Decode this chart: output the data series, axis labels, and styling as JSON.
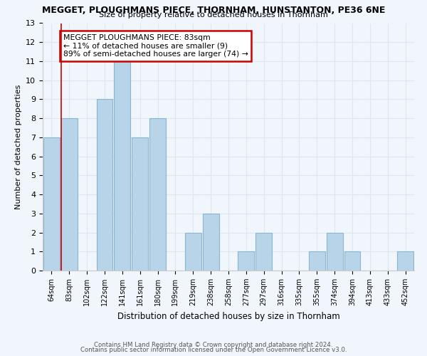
{
  "title": "MEGGET, PLOUGHMANS PIECE, THORNHAM, HUNSTANTON, PE36 6NE",
  "subtitle": "Size of property relative to detached houses in Thornham",
  "xlabel": "Distribution of detached houses by size in Thornham",
  "ylabel": "Number of detached properties",
  "bar_color": "#b8d4e8",
  "bar_edge_color": "#8ab4d0",
  "categories": [
    "64sqm",
    "83sqm",
    "102sqm",
    "122sqm",
    "141sqm",
    "161sqm",
    "180sqm",
    "199sqm",
    "219sqm",
    "238sqm",
    "258sqm",
    "277sqm",
    "297sqm",
    "316sqm",
    "335sqm",
    "355sqm",
    "374sqm",
    "394sqm",
    "413sqm",
    "433sqm",
    "452sqm"
  ],
  "values": [
    7,
    8,
    0,
    9,
    11,
    7,
    8,
    0,
    2,
    3,
    0,
    1,
    2,
    0,
    0,
    1,
    2,
    1,
    0,
    0,
    1
  ],
  "ylim": [
    0,
    13
  ],
  "yticks": [
    0,
    1,
    2,
    3,
    4,
    5,
    6,
    7,
    8,
    9,
    10,
    11,
    12,
    13
  ],
  "annotation_title": "MEGGET PLOUGHMANS PIECE: 83sqm",
  "annotation_line1": "← 11% of detached houses are smaller (9)",
  "annotation_line2": "89% of semi-detached houses are larger (74) →",
  "annotation_box_color": "#ffffff",
  "annotation_box_edge_color": "#cc0000",
  "highlight_bar_index": 1,
  "vline_x": 1,
  "footer_line1": "Contains HM Land Registry data © Crown copyright and database right 2024.",
  "footer_line2": "Contains public sector information licensed under the Open Government Licence v3.0.",
  "grid_color": "#dce8f0",
  "background_color": "#f0f6fb"
}
